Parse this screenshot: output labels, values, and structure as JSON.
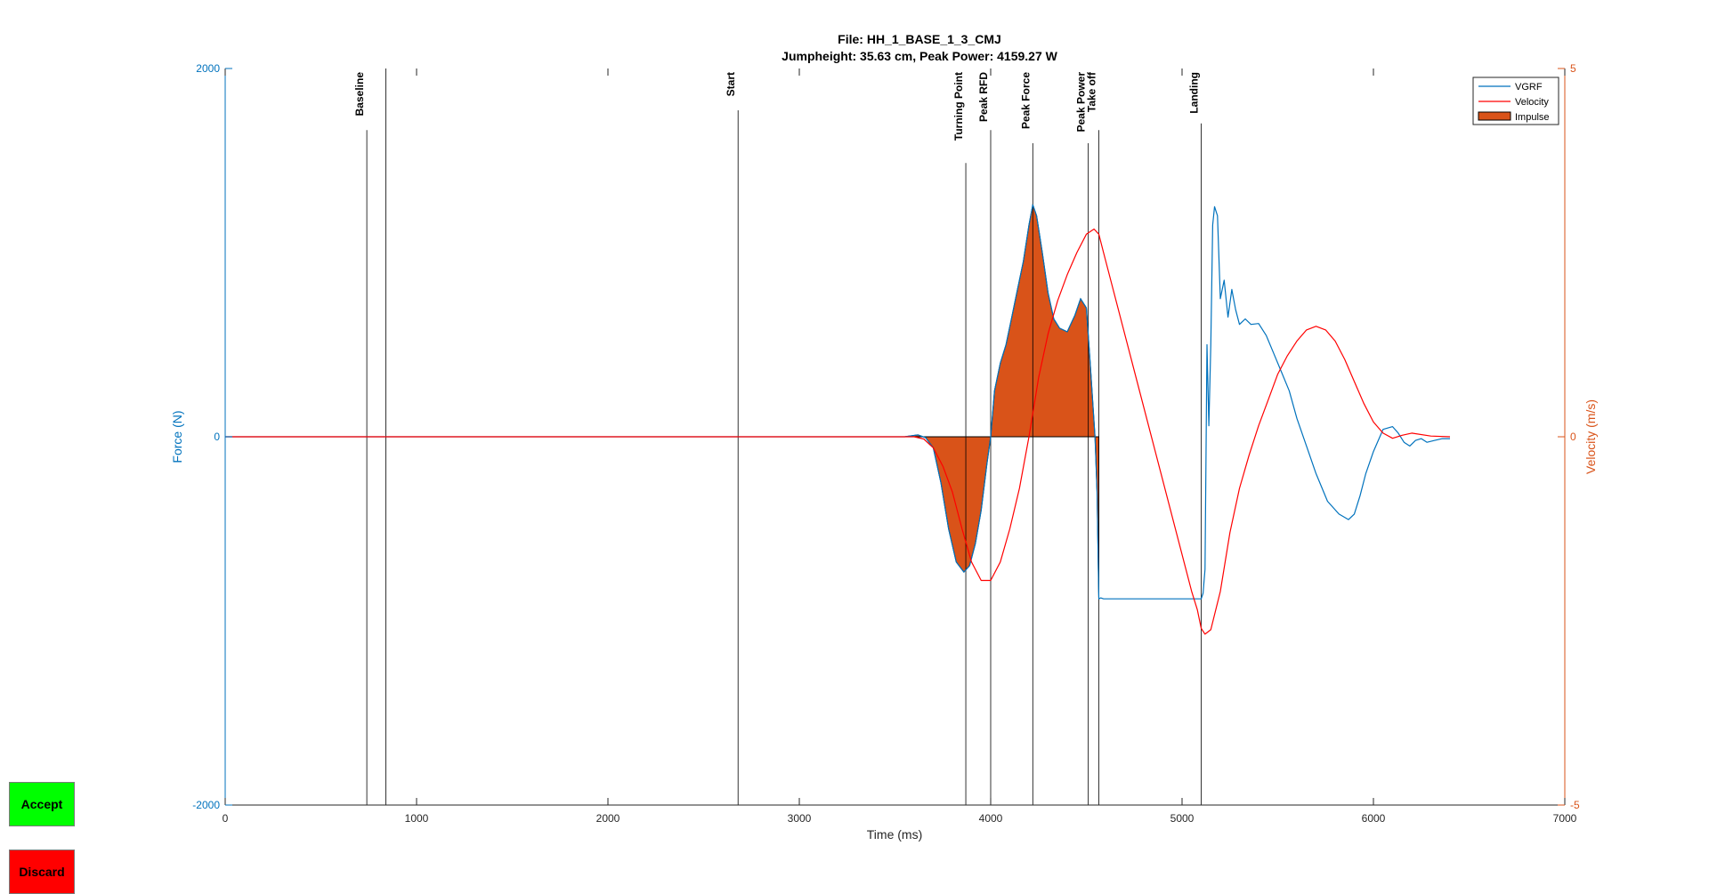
{
  "chart_data": {
    "type": "line",
    "title": "File: HH_1_BASE_1_3_CMJ",
    "subtitle": "Jumpheight: 35.63 cm, Peak Power: 4159.27 W",
    "xlabel": "Time (ms)",
    "ylabel_left": "Force (N)",
    "ylabel_right": "Velocity (m/s)",
    "xlim": [
      0,
      7000
    ],
    "ylim_left": [
      -2000,
      2000
    ],
    "ylim_right": [
      -5,
      5
    ],
    "xticks": [
      0,
      1000,
      2000,
      3000,
      4000,
      5000,
      6000,
      7000
    ],
    "yticks_left": [
      -2000,
      0,
      2000
    ],
    "yticks_right": [
      -5,
      0,
      5
    ],
    "legend_position": "top-right",
    "colors": {
      "vgrf": "#0072BD",
      "velocity": "#FF0000",
      "impulse": "#D95319",
      "events": "#000000"
    },
    "events": [
      {
        "label": "Baseline",
        "x": 740
      },
      {
        "label": "",
        "x": 840
      },
      {
        "label": "Start",
        "x": 2680
      },
      {
        "label": "Turning Point",
        "x": 3870
      },
      {
        "label": "Peak RFD",
        "x": 4000
      },
      {
        "label": "Peak Force",
        "x": 4220
      },
      {
        "label": "Peak Power",
        "x": 4510
      },
      {
        "label": "Take off",
        "x": 4565
      },
      {
        "label": "Landing",
        "x": 5100
      }
    ],
    "series": [
      {
        "name": "VGRF",
        "x": [
          0,
          3550,
          3620,
          3660,
          3700,
          3740,
          3780,
          3820,
          3860,
          3890,
          3920,
          3950,
          3980,
          4000,
          4020,
          4050,
          4080,
          4110,
          4140,
          4170,
          4200,
          4220,
          4240,
          4270,
          4300,
          4330,
          4360,
          4400,
          4440,
          4470,
          4500,
          4520,
          4545,
          4556,
          4565,
          4575,
          4590,
          4700,
          5000,
          5100,
          5110,
          5120,
          5130,
          5140,
          5150,
          5160,
          5170,
          5185,
          5200,
          5220,
          5240,
          5260,
          5280,
          5300,
          5330,
          5360,
          5400,
          5440,
          5480,
          5520,
          5560,
          5600,
          5650,
          5700,
          5760,
          5820,
          5870,
          5900,
          5930,
          5960,
          6000,
          6050,
          6100,
          6130,
          6160,
          6190,
          6220,
          6250,
          6280,
          6320,
          6360,
          6400
        ],
        "values": [
          0,
          0,
          10,
          -5,
          -60,
          -250,
          -500,
          -680,
          -735,
          -700,
          -580,
          -400,
          -150,
          0,
          250,
          400,
          500,
          650,
          800,
          950,
          1150,
          1260,
          1200,
          1000,
          780,
          640,
          590,
          570,
          660,
          750,
          700,
          400,
          0,
          -300,
          -880,
          -875,
          -880,
          -880,
          -880,
          -880,
          -850,
          -720,
          500,
          60,
          500,
          1150,
          1250,
          1200,
          750,
          850,
          650,
          800,
          690,
          610,
          640,
          610,
          615,
          550,
          450,
          350,
          250,
          100,
          -50,
          -200,
          -350,
          -420,
          -450,
          -420,
          -320,
          -200,
          -80,
          40,
          55,
          20,
          -30,
          -50,
          -20,
          -10,
          -30,
          -20,
          -10,
          -10
        ]
      },
      {
        "name": "Velocity",
        "x": [
          0,
          3600,
          3650,
          3700,
          3750,
          3800,
          3850,
          3900,
          3950,
          4000,
          4050,
          4100,
          4150,
          4200,
          4250,
          4300,
          4350,
          4400,
          4450,
          4500,
          4540,
          4565,
          4590,
          5050,
          5080,
          5100,
          5120,
          5150,
          5200,
          5250,
          5300,
          5350,
          5400,
          5450,
          5500,
          5550,
          5600,
          5650,
          5700,
          5750,
          5800,
          5850,
          5900,
          5950,
          6000,
          6050,
          6100,
          6150,
          6200,
          6300,
          6400
        ],
        "values": [
          0,
          0,
          -0.03,
          -0.15,
          -0.4,
          -0.75,
          -1.25,
          -1.7,
          -1.95,
          -1.95,
          -1.7,
          -1.25,
          -0.7,
          0,
          0.8,
          1.4,
          1.85,
          2.2,
          2.5,
          2.75,
          2.82,
          2.75,
          2.5,
          -2.1,
          -2.35,
          -2.6,
          -2.68,
          -2.62,
          -2.1,
          -1.3,
          -0.7,
          -0.25,
          0.15,
          0.5,
          0.85,
          1.1,
          1.3,
          1.45,
          1.5,
          1.45,
          1.3,
          1.05,
          0.75,
          0.45,
          0.2,
          0.05,
          -0.02,
          0.02,
          0.05,
          0.01,
          0
        ]
      },
      {
        "name": "Impulse"
      }
    ]
  },
  "buttons": {
    "accept": {
      "label": "Accept",
      "color": "#00FF00"
    },
    "discard": {
      "label": "Discard",
      "color": "#FF0000"
    }
  }
}
